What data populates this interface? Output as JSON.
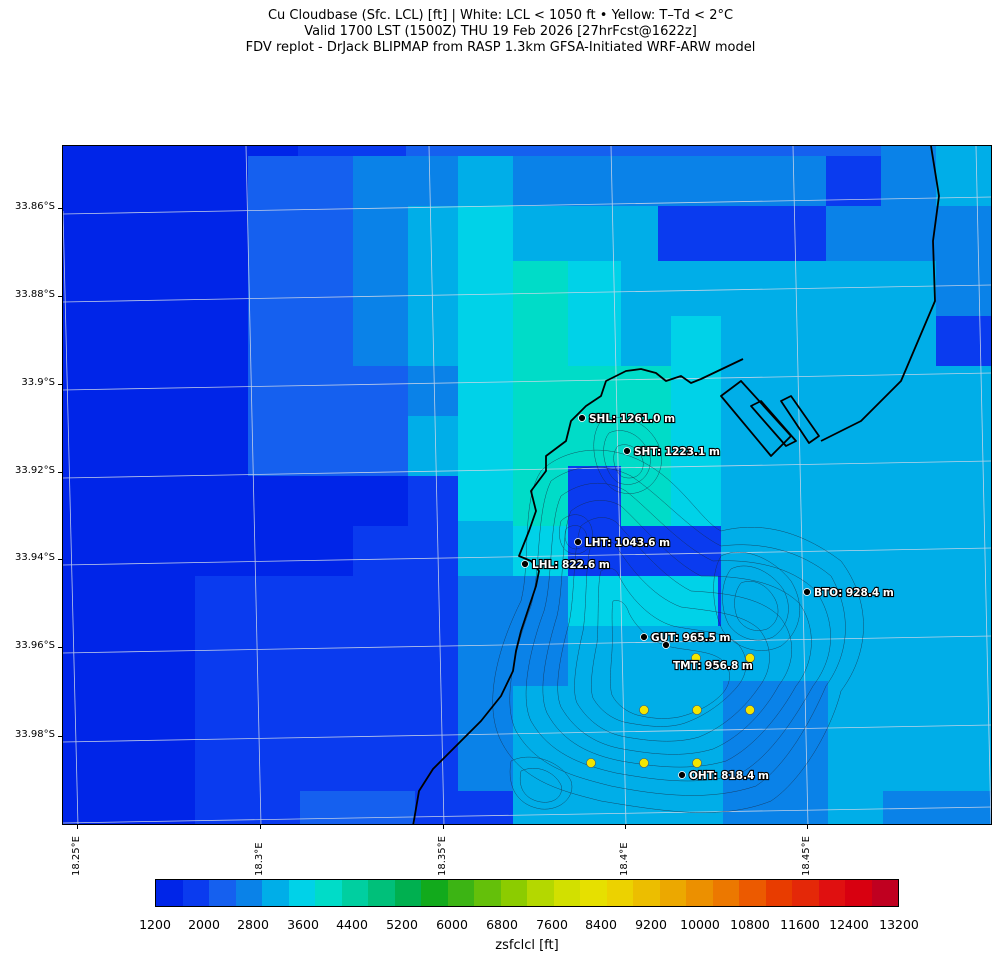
{
  "title": {
    "line1": "Cu Cloudbase (Sfc. LCL) [ft]  |  White: LCL < 1050 ft • Yellow: T–Td < 2°C",
    "line2": "Valid 1700 LST (1500Z) THU 19 Feb 2026 [27hrFcst@1622z]",
    "line3": "FDV replot - DrJack BLIPMAP from RASP 1.3km GFSA-Initiated WRF-ARW model"
  },
  "axes": {
    "latitude_labels": [
      "33.86°S",
      "33.88°S",
      "33.9°S",
      "33.92°S",
      "33.94°S",
      "33.96°S",
      "33.98°S"
    ],
    "longitude_labels": [
      "18.25°E",
      "18.3°E",
      "18.35°E",
      "18.4°E",
      "18.45°E"
    ]
  },
  "stations": [
    {
      "id": "SHL",
      "label": "SHL: 1261.0 m"
    },
    {
      "id": "SHT",
      "label": "SHT: 1223.1 m"
    },
    {
      "id": "LHT",
      "label": "LHT: 1043.6 m"
    },
    {
      "id": "LHL",
      "label": "LHL: 822.6 m"
    },
    {
      "id": "BTO",
      "label": "BTO: 928.4 m"
    },
    {
      "id": "GUT",
      "label": "GUT: 965.5 m"
    },
    {
      "id": "TMT",
      "label": "TMT: 956.8 m"
    },
    {
      "id": "OHT",
      "label": "OHT: 818.4 m"
    }
  ],
  "colorbar": {
    "title": "zsfclcl [ft]",
    "tick_labels": [
      "1200",
      "2000",
      "2800",
      "3600",
      "4400",
      "5200",
      "6000",
      "6800",
      "7600",
      "8400",
      "9200",
      "10000",
      "10800",
      "11600",
      "12400",
      "13200"
    ],
    "colors": [
      "#0025e8",
      "#0a3bef",
      "#1560ef",
      "#0a82e8",
      "#00aee8",
      "#00d2e8",
      "#00dcc8",
      "#00cfa0",
      "#00c07a",
      "#00b050",
      "#12aa1c",
      "#3cb414",
      "#64c00a",
      "#8ccc00",
      "#b4d800",
      "#d2e000",
      "#e6e000",
      "#ecd200",
      "#ecbe00",
      "#eca800",
      "#ec9000",
      "#ec7800",
      "#ec5a00",
      "#e83c00",
      "#e42808",
      "#e01010",
      "#d80010",
      "#c00020"
    ]
  },
  "cell_colors": {
    "deep_blue": "#0025e8",
    "blue": "#0a3bef",
    "mid_blue": "#1560ef",
    "sky": "#0a82e8",
    "light_sky": "#00aee8",
    "cyan": "#00d2e8",
    "turquoise": "#00dcc8"
  },
  "colors": {
    "coastline": "#000000",
    "grid": "#d0d8e8",
    "yellow_marker": "#f2e600"
  }
}
